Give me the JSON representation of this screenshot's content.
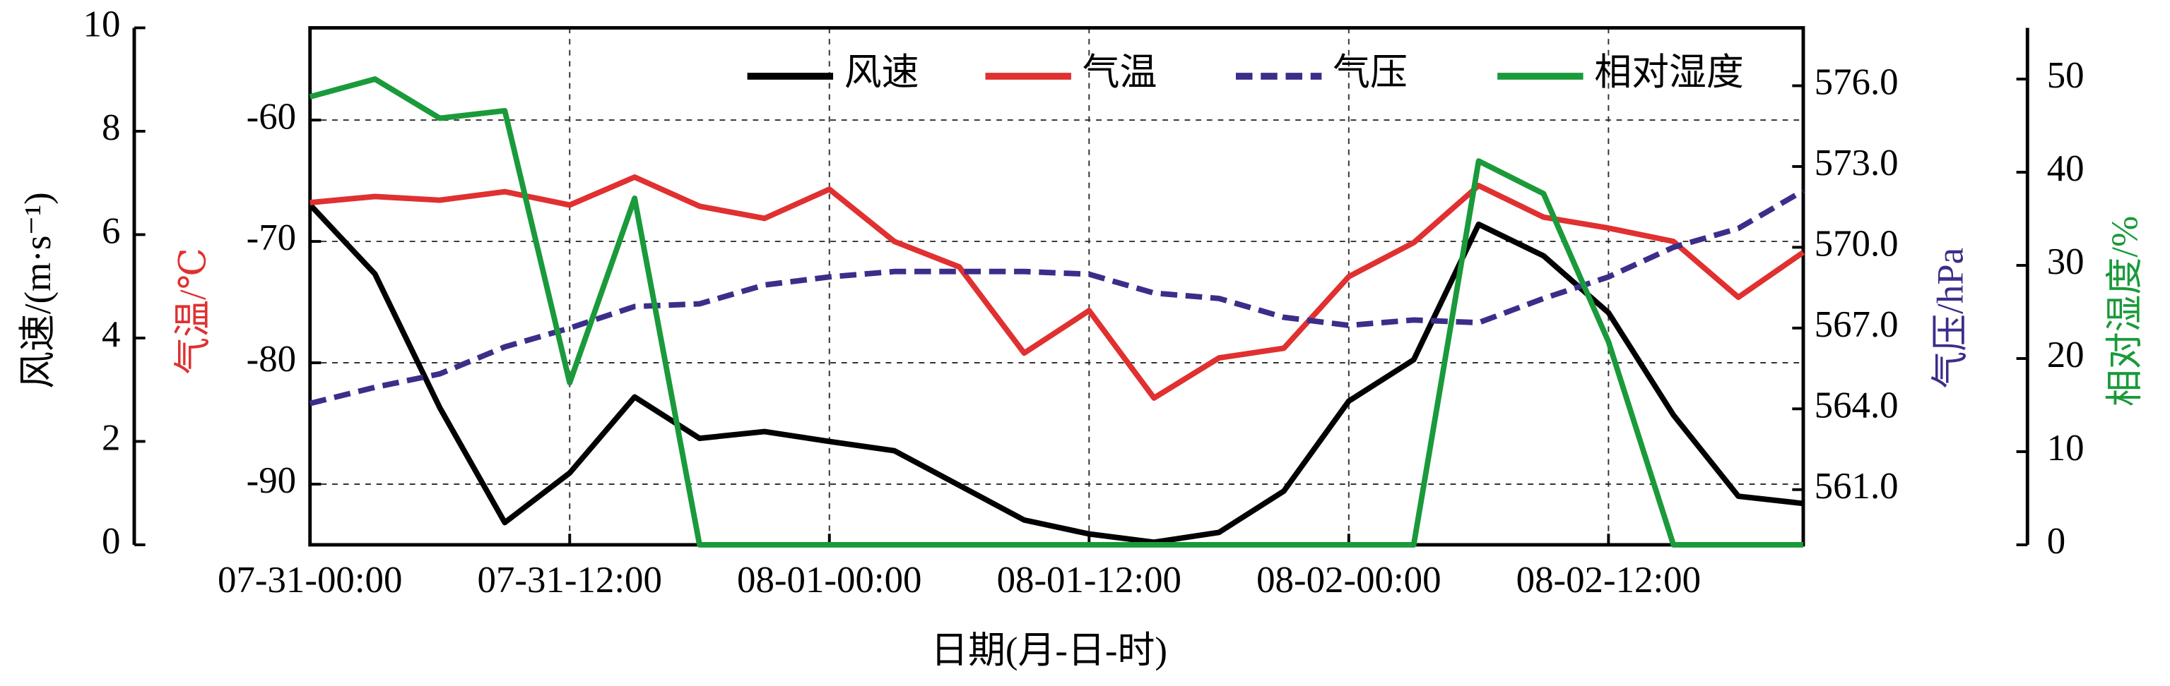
{
  "chart_data": {
    "type": "line",
    "xlabel": "日期(月-日-时)",
    "categories": [
      "07-31-00:00",
      null,
      null,
      null,
      "07-31-12:00",
      null,
      null,
      null,
      "08-01-00:00",
      null,
      null,
      null,
      "08-01-12:00",
      null,
      null,
      null,
      "08-02-00:00",
      null,
      null,
      null,
      "08-02-12:00",
      null,
      null,
      null
    ],
    "ylabel": "风速/(m·s⁻¹)",
    "ylim": [
      0,
      10
    ],
    "yticks": [
      0,
      2,
      4,
      6,
      8,
      10
    ],
    "y2label": "气温/℃",
    "y2lim": [
      -95,
      -52.4
    ],
    "y2ticks": [
      -90,
      -80,
      -70,
      -60
    ],
    "y3label": "气压/hPa",
    "y3lim": [
      558.95,
      578.15
    ],
    "y3ticks": [
      {
        "value": 561,
        "label": "561.0"
      },
      {
        "value": 564,
        "label": "564.0"
      },
      {
        "value": 567,
        "label": "567.0"
      },
      {
        "value": 570,
        "label": "570.0"
      },
      {
        "value": 573,
        "label": "573.0"
      },
      {
        "value": 576,
        "label": "576.0"
      }
    ],
    "y4label": "相对湿度/%",
    "y4lim": [
      0,
      55.5
    ],
    "y4ticks": [
      0,
      10,
      20,
      30,
      40,
      50
    ],
    "grid": true,
    "legend": "top-right",
    "series": [
      {
        "name": "风速",
        "color": "#000000",
        "axis": "y",
        "linestyle": "solid",
        "values": [
          6.58,
          5.24,
          2.65,
          0.43,
          1.39,
          2.86,
          2.06,
          2.19,
          2.0,
          1.82,
          1.15,
          0.48,
          0.21,
          0.05,
          0.24,
          1.04,
          2.78,
          3.58,
          6.2,
          5.59,
          4.49,
          2.51,
          0.94,
          0.8
        ]
      },
      {
        "name": "气温",
        "color": "#e03030",
        "axis": "y2",
        "linestyle": "solid",
        "values": [
          -66.8,
          -66.3,
          -66.6,
          -65.9,
          -67.0,
          -64.7,
          -67.1,
          -68.1,
          -65.7,
          -70.0,
          -72.1,
          -79.2,
          -75.7,
          -82.9,
          -79.6,
          -78.8,
          -72.9,
          -70.1,
          -65.4,
          -68.0,
          -68.9,
          -70.0,
          -74.6,
          -70.9
        ]
      },
      {
        "name": "气压",
        "color": "#3b2e8a",
        "axis": "y3",
        "linestyle": "dashed",
        "values": [
          564.2,
          564.8,
          565.3,
          566.3,
          567.0,
          567.8,
          567.9,
          568.6,
          568.9,
          569.1,
          569.1,
          569.1,
          569.0,
          568.3,
          568.1,
          567.4,
          567.1,
          567.3,
          567.2,
          568.1,
          568.9,
          570.0,
          570.7,
          572.1
        ]
      },
      {
        "name": "相对湿度",
        "color": "#1a9a3a",
        "axis": "y4",
        "linestyle": "solid",
        "values": [
          48.1,
          50.0,
          45.8,
          46.6,
          17.4,
          37.2,
          0,
          0,
          0,
          0,
          0,
          0,
          0,
          0,
          0,
          0,
          0,
          0,
          41.2,
          37.7,
          21.8,
          0,
          0,
          0
        ]
      }
    ]
  }
}
